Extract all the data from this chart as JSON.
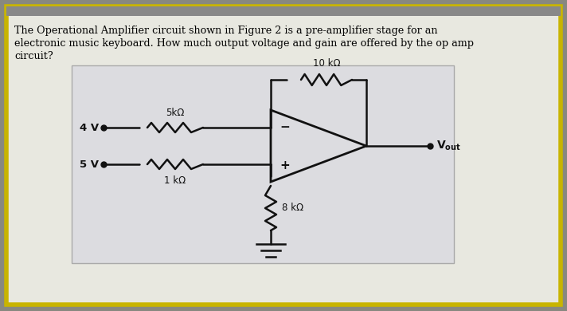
{
  "title_line1": "The Operational Amplifier circuit shown in Figure 2 is a pre-amplifier stage for an",
  "title_line2": "electronic music keyboard. How much output voltage and gain are offered by the op amp",
  "title_line3": "circuit?",
  "bg_color": "#e8e8e0",
  "outer_bg": "#888880",
  "border_color": "#c8b400",
  "circuit_bg": "#dcdce0",
  "text_color": "#000000",
  "resistor_5k": "5kΩ",
  "resistor_10k": "10 kΩ",
  "resistor_1k": "1 kΩ",
  "resistor_8k": "8 kΩ",
  "v1_label": "4 V",
  "v2_label": "5 V",
  "minus_label": "−",
  "plus_label": "+"
}
